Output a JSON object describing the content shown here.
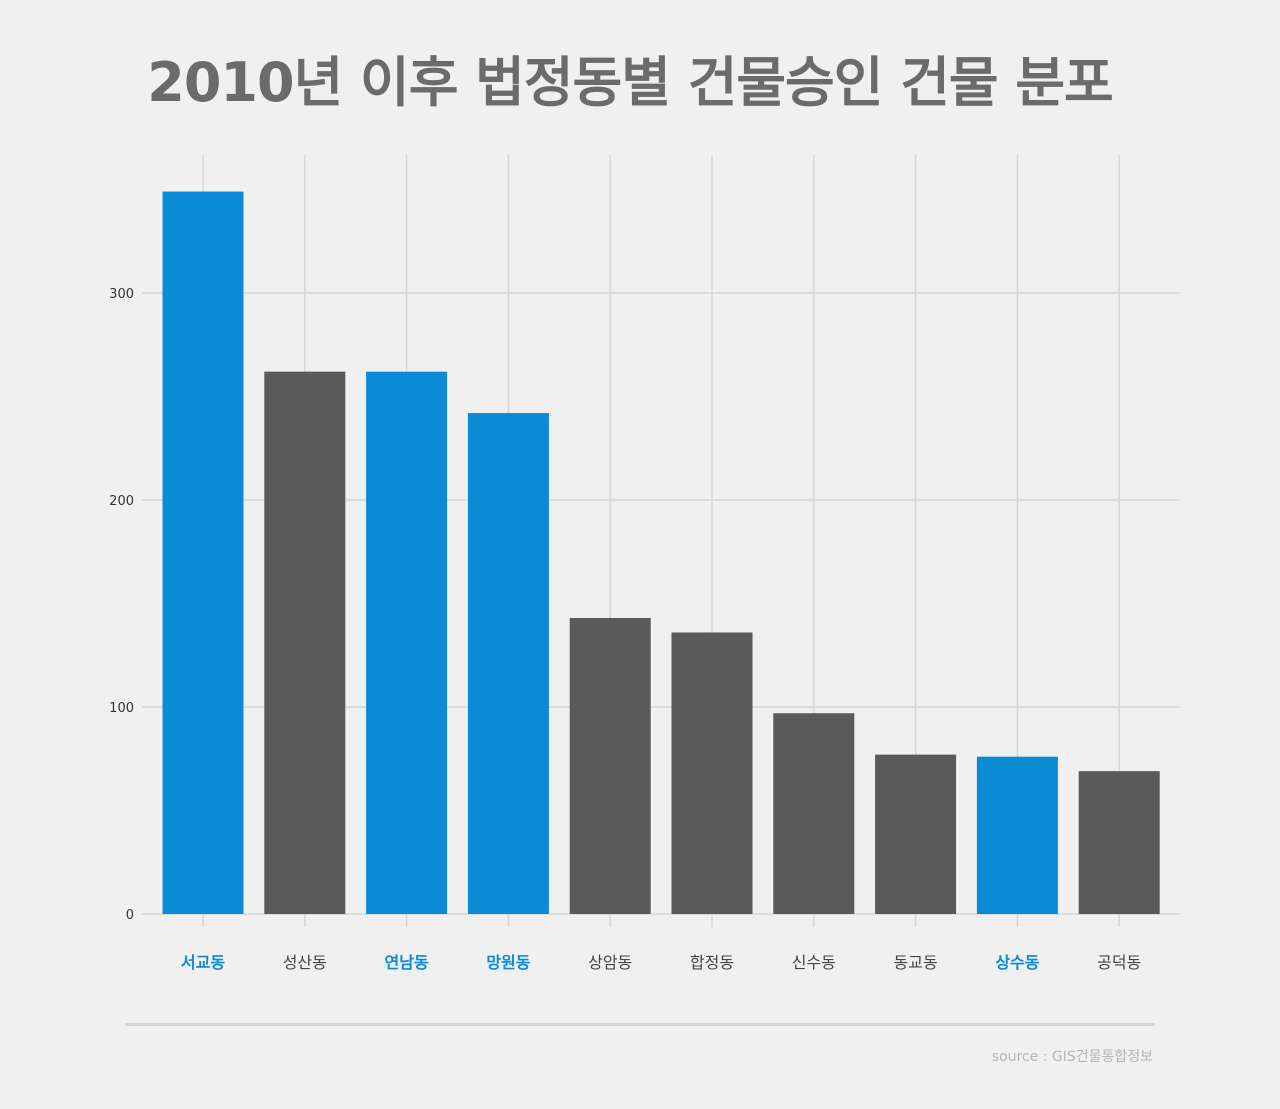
{
  "title": "2010년 이후 법정동별 건물승인 건물 분포",
  "source": "source : GIS건물통합정보",
  "colors": {
    "highlight": "#0b8bd6",
    "default": "#5a5a5a",
    "grid": "#d6d6d6",
    "tick_text": "#333333",
    "highlight_label": "#0b8bd6",
    "default_label": "#444444"
  },
  "chart_data": {
    "type": "bar",
    "title": "2010년 이후 법정동별 건물승인 건물 분포",
    "xlabel": "",
    "ylabel": "",
    "categories": [
      "서교동",
      "성산동",
      "연남동",
      "망원동",
      "상암동",
      "합정동",
      "신수동",
      "동교동",
      "상수동",
      "공덕동"
    ],
    "values": [
      349,
      262,
      262,
      242,
      143,
      136,
      97,
      77,
      76,
      69
    ],
    "highlighted": [
      true,
      false,
      true,
      true,
      false,
      false,
      false,
      false,
      true,
      false
    ],
    "ylim": [
      0,
      360
    ],
    "yticks": [
      0,
      100,
      200,
      300
    ],
    "grid": true,
    "legend": "none"
  }
}
